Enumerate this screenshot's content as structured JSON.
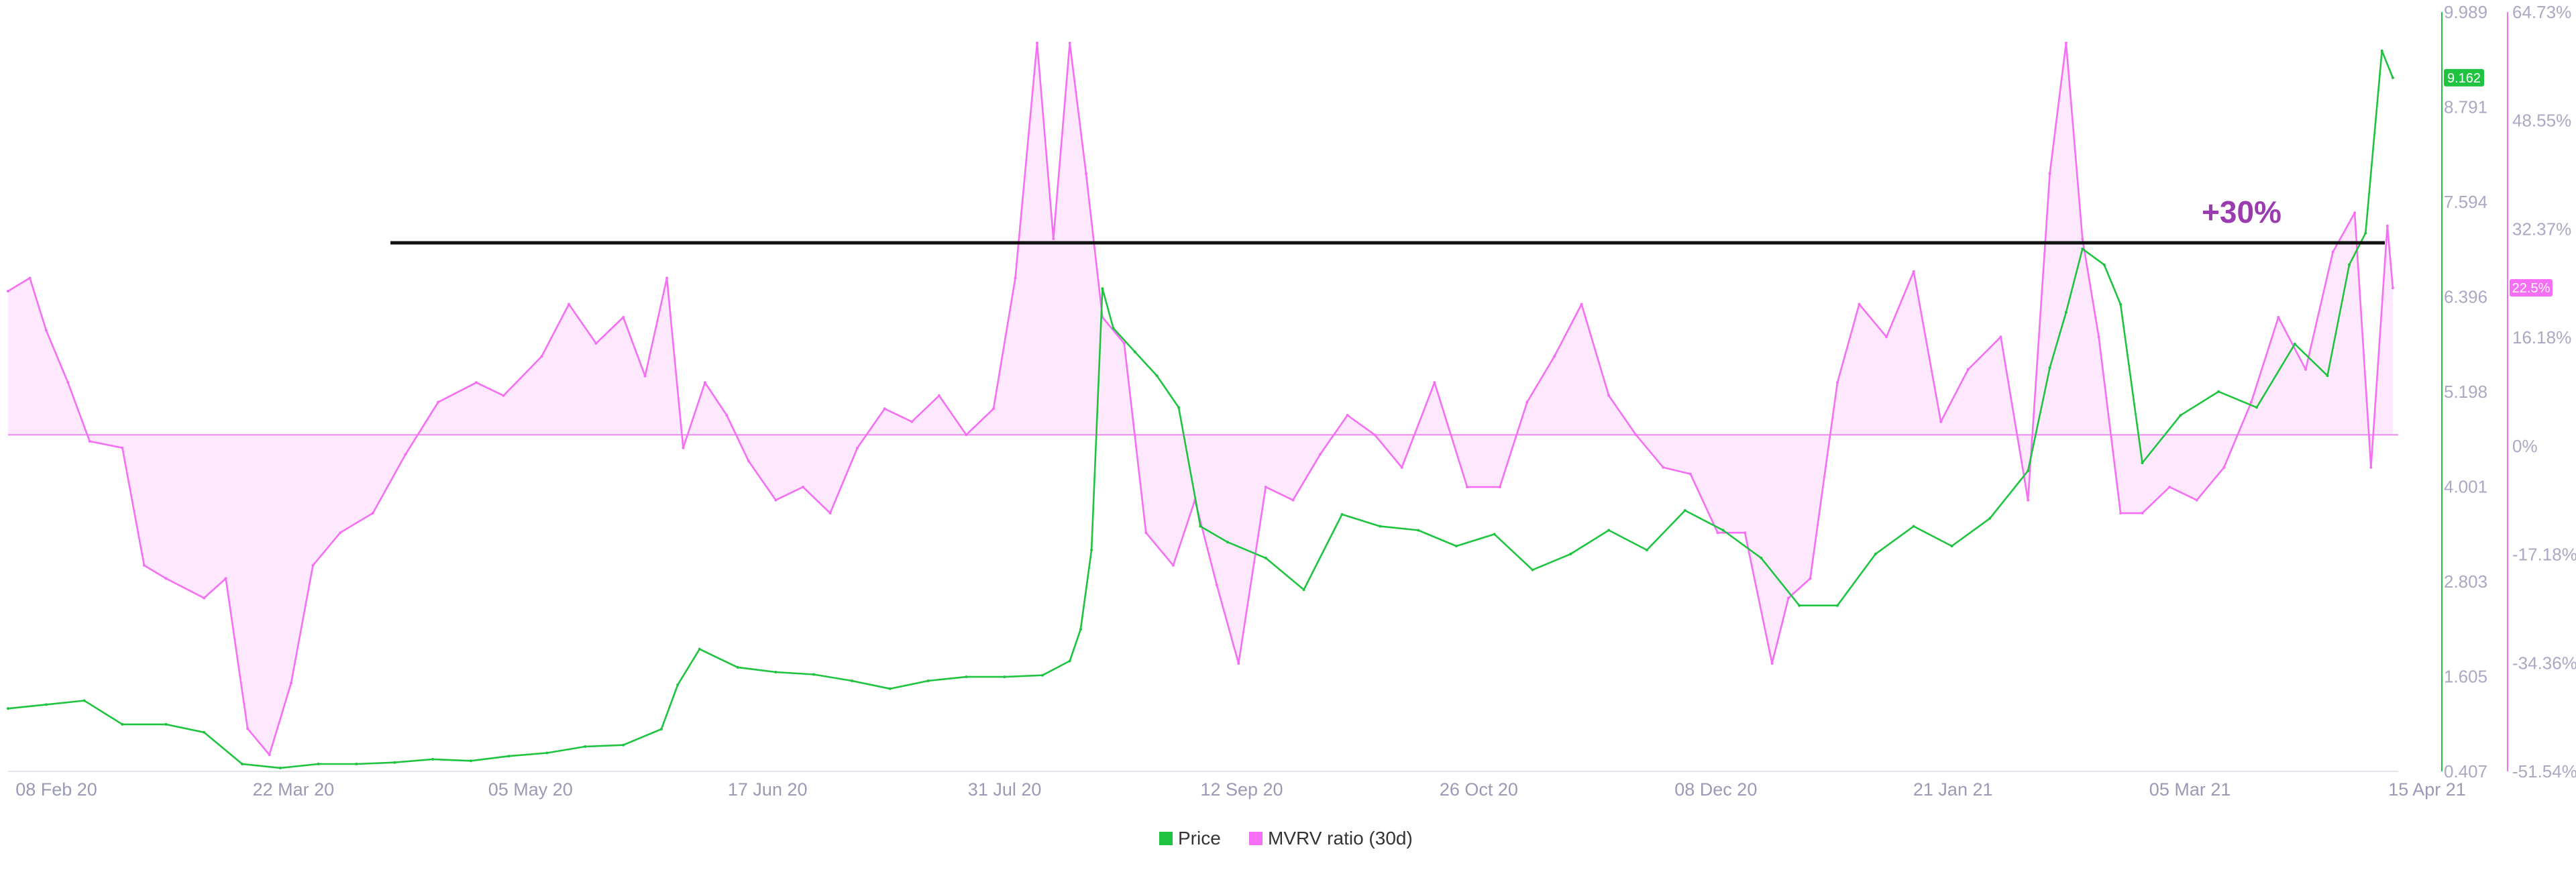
{
  "chart_data": {
    "type": "line",
    "x_range": [
      "2020-02-01",
      "2021-04-15"
    ],
    "x_ticks": [
      "08 Feb 20",
      "22 Mar 20",
      "05 May 20",
      "17 Jun 20",
      "31 Jul 20",
      "12 Sep 20",
      "26 Oct 20",
      "08 Dec 20",
      "21 Jan 21",
      "05 Mar 21",
      "15 Apr 21"
    ],
    "y_left": {
      "ticks": [
        "9.989",
        "8.791",
        "7.594",
        "6.396",
        "5.198",
        "4.001",
        "2.803",
        "1.605",
        "0.407"
      ],
      "range": [
        0.407,
        9.989
      ]
    },
    "y_right": {
      "ticks": [
        "64.73%",
        "48.55%",
        "32.37%",
        "16.18%",
        "0%",
        "-17.18%",
        "-34.36%",
        "-51.54%"
      ],
      "range": [
        -51.54,
        64.73
      ]
    },
    "series": [
      {
        "name": "Price",
        "color": "#1ec33f",
        "axis": "left",
        "current_label": "9.162",
        "x": [
          "2020-02-01",
          "2020-02-08",
          "2020-02-15",
          "2020-02-22",
          "2020-03-01",
          "2020-03-08",
          "2020-03-15",
          "2020-03-22",
          "2020-03-29",
          "2020-04-05",
          "2020-04-12",
          "2020-04-19",
          "2020-04-26",
          "2020-05-03",
          "2020-05-10",
          "2020-05-17",
          "2020-05-24",
          "2020-05-31",
          "2020-06-03",
          "2020-06-07",
          "2020-06-14",
          "2020-06-21",
          "2020-06-28",
          "2020-07-05",
          "2020-07-12",
          "2020-07-19",
          "2020-07-26",
          "2020-08-02",
          "2020-08-09",
          "2020-08-14",
          "2020-08-16",
          "2020-08-18",
          "2020-08-20",
          "2020-08-22",
          "2020-08-26",
          "2020-08-30",
          "2020-09-03",
          "2020-09-07",
          "2020-09-12",
          "2020-09-19",
          "2020-09-26",
          "2020-10-03",
          "2020-10-10",
          "2020-10-17",
          "2020-10-24",
          "2020-10-31",
          "2020-11-07",
          "2020-11-14",
          "2020-11-21",
          "2020-11-28",
          "2020-12-05",
          "2020-12-12",
          "2020-12-19",
          "2020-12-26",
          "2021-01-02",
          "2021-01-09",
          "2021-01-16",
          "2021-01-23",
          "2021-01-30",
          "2021-02-06",
          "2021-02-10",
          "2021-02-13",
          "2021-02-16",
          "2021-02-20",
          "2021-02-23",
          "2021-02-27",
          "2021-03-06",
          "2021-03-13",
          "2021-03-20",
          "2021-03-27",
          "2021-04-02",
          "2021-04-06",
          "2021-04-09",
          "2021-04-12",
          "2021-04-14"
        ],
        "values": [
          1.2,
          1.25,
          1.3,
          1.0,
          1.0,
          0.9,
          0.5,
          0.45,
          0.5,
          0.5,
          0.52,
          0.56,
          0.54,
          0.6,
          0.64,
          0.72,
          0.74,
          0.94,
          1.5,
          1.95,
          1.72,
          1.66,
          1.63,
          1.55,
          1.45,
          1.55,
          1.6,
          1.6,
          1.62,
          1.8,
          2.2,
          3.2,
          6.5,
          6.0,
          5.7,
          5.4,
          5.0,
          3.5,
          3.3,
          3.1,
          2.7,
          3.65,
          3.5,
          3.45,
          3.25,
          3.4,
          2.95,
          3.15,
          3.45,
          3.2,
          3.7,
          3.45,
          3.1,
          2.5,
          2.5,
          3.15,
          3.5,
          3.25,
          3.6,
          4.2,
          5.5,
          6.2,
          7.0,
          6.8,
          6.3,
          4.3,
          4.9,
          5.2,
          5.0,
          5.8,
          5.4,
          6.8,
          7.2,
          9.5,
          9.16
        ]
      },
      {
        "name": "MVRV ratio (30d)",
        "color": "#f56ff5",
        "axis": "right",
        "current_label": "22.5%",
        "x": [
          "2020-02-01",
          "2020-02-05",
          "2020-02-08",
          "2020-02-12",
          "2020-02-16",
          "2020-02-22",
          "2020-02-26",
          "2020-03-01",
          "2020-03-08",
          "2020-03-12",
          "2020-03-16",
          "2020-03-20",
          "2020-03-24",
          "2020-03-28",
          "2020-04-02",
          "2020-04-08",
          "2020-04-14",
          "2020-04-20",
          "2020-04-27",
          "2020-05-02",
          "2020-05-09",
          "2020-05-14",
          "2020-05-19",
          "2020-05-24",
          "2020-05-28",
          "2020-06-01",
          "2020-06-04",
          "2020-06-08",
          "2020-06-12",
          "2020-06-16",
          "2020-06-21",
          "2020-06-26",
          "2020-07-01",
          "2020-07-06",
          "2020-07-11",
          "2020-07-16",
          "2020-07-21",
          "2020-07-26",
          "2020-07-31",
          "2020-08-04",
          "2020-08-08",
          "2020-08-11",
          "2020-08-14",
          "2020-08-17",
          "2020-08-20",
          "2020-08-24",
          "2020-08-28",
          "2020-09-02",
          "2020-09-06",
          "2020-09-10",
          "2020-09-14",
          "2020-09-19",
          "2020-09-24",
          "2020-09-29",
          "2020-10-04",
          "2020-10-09",
          "2020-10-14",
          "2020-10-20",
          "2020-10-26",
          "2020-11-01",
          "2020-11-06",
          "2020-11-11",
          "2020-11-16",
          "2020-11-21",
          "2020-11-26",
          "2020-12-01",
          "2020-12-06",
          "2020-12-11",
          "2020-12-16",
          "2020-12-21",
          "2020-12-24",
          "2020-12-28",
          "2021-01-02",
          "2021-01-06",
          "2021-01-11",
          "2021-01-16",
          "2021-01-21",
          "2021-01-26",
          "2021-02-01",
          "2021-02-06",
          "2021-02-10",
          "2021-02-13",
          "2021-02-16",
          "2021-02-19",
          "2021-02-23",
          "2021-02-27",
          "2021-03-04",
          "2021-03-09",
          "2021-03-14",
          "2021-03-19",
          "2021-03-24",
          "2021-03-29",
          "2021-04-03",
          "2021-04-07",
          "2021-04-10",
          "2021-04-13",
          "2021-04-14"
        ],
        "values": [
          22,
          24,
          16,
          8,
          -1,
          -2,
          -20,
          -22,
          -25,
          -22,
          -45,
          -49,
          -38,
          -20,
          -15,
          -12,
          -3,
          5,
          8,
          6,
          12,
          20,
          14,
          18,
          9,
          24,
          -2,
          8,
          3,
          -4,
          -10,
          -8,
          -12,
          -2,
          4,
          2,
          6,
          0,
          4,
          24,
          60,
          30,
          60,
          40,
          18,
          14,
          -15,
          -20,
          -10,
          -23,
          -35,
          -8,
          -10,
          -3,
          3,
          0,
          -5,
          8,
          -8,
          -8,
          5,
          12,
          20,
          6,
          0,
          -5,
          -6,
          -15,
          -15,
          -35,
          -25,
          -22,
          8,
          20,
          15,
          25,
          2,
          10,
          15,
          -10,
          40,
          60,
          30,
          15,
          -12,
          -12,
          -8,
          -10,
          -5,
          5,
          18,
          10,
          28,
          34,
          -5,
          32,
          22.5
        ]
      }
    ],
    "reference_line": {
      "label": "+30%"
    },
    "legend": {
      "position": "bottom-center",
      "items": [
        "Price",
        "MVRV ratio (30d)"
      ]
    }
  }
}
